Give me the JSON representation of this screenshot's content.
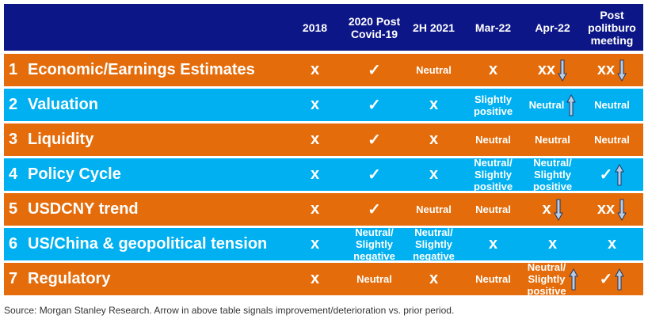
{
  "header": {
    "columns": [
      "2018",
      "2020 Post\nCovid-19",
      "2H 2021",
      "Mar-22",
      "Apr-22",
      "Post\npolitburo\nmeeting"
    ]
  },
  "rows": [
    {
      "num": "1",
      "label": "Economic/Earnings Estimates",
      "cells": [
        {
          "v": "x"
        },
        {
          "v": "✓"
        },
        {
          "v": "Neutral"
        },
        {
          "v": "x"
        },
        {
          "v": "xx",
          "arrow": "down"
        },
        {
          "v": "xx",
          "arrow": "down"
        }
      ]
    },
    {
      "num": "2",
      "label": "Valuation",
      "cells": [
        {
          "v": "x"
        },
        {
          "v": "✓"
        },
        {
          "v": "x"
        },
        {
          "v": "Slightly\npositive"
        },
        {
          "v": "Neutral",
          "arrow": "up"
        },
        {
          "v": "Neutral"
        }
      ]
    },
    {
      "num": "3",
      "label": "Liquidity",
      "cells": [
        {
          "v": "x"
        },
        {
          "v": "✓"
        },
        {
          "v": "x"
        },
        {
          "v": "Neutral"
        },
        {
          "v": "Neutral"
        },
        {
          "v": "Neutral"
        }
      ]
    },
    {
      "num": "4",
      "label": "Policy Cycle",
      "cells": [
        {
          "v": "x"
        },
        {
          "v": "✓"
        },
        {
          "v": "x"
        },
        {
          "v": "Neutral/\nSlightly\npositive"
        },
        {
          "v": "Neutral/\nSlightly\npositive"
        },
        {
          "v": "✓",
          "arrow": "up"
        }
      ]
    },
    {
      "num": "5",
      "label": "USDCNY trend",
      "cells": [
        {
          "v": "x"
        },
        {
          "v": "✓"
        },
        {
          "v": "Neutral"
        },
        {
          "v": "Neutral"
        },
        {
          "v": "x",
          "arrow": "down"
        },
        {
          "v": "xx",
          "arrow": "down"
        }
      ]
    },
    {
      "num": "6",
      "label": "US/China & geopolitical tension",
      "cells": [
        {
          "v": "x"
        },
        {
          "v": "Neutral/\nSlightly\nnegative"
        },
        {
          "v": "Neutral/\nSlightly\nnegative"
        },
        {
          "v": "x"
        },
        {
          "v": "x"
        },
        {
          "v": "x"
        }
      ]
    },
    {
      "num": "7",
      "label": "Regulatory",
      "cells": [
        {
          "v": "x"
        },
        {
          "v": "Neutral"
        },
        {
          "v": "x"
        },
        {
          "v": "Neutral"
        },
        {
          "v": "Neutral/\nSlightly\npositive",
          "arrow": "up"
        },
        {
          "v": "✓",
          "arrow": "up"
        }
      ]
    }
  ],
  "source": "Source: Morgan Stanley Research. Arrow in above table signals improvement/deterioration vs. prior period.",
  "colors": {
    "header": "#0d1687",
    "orange_row": "#e46c0a",
    "blue_row": "#00b0f0",
    "text": "#ffffff",
    "arrow_fill": "#b8cce4",
    "arrow_stroke": "#1f3864"
  }
}
